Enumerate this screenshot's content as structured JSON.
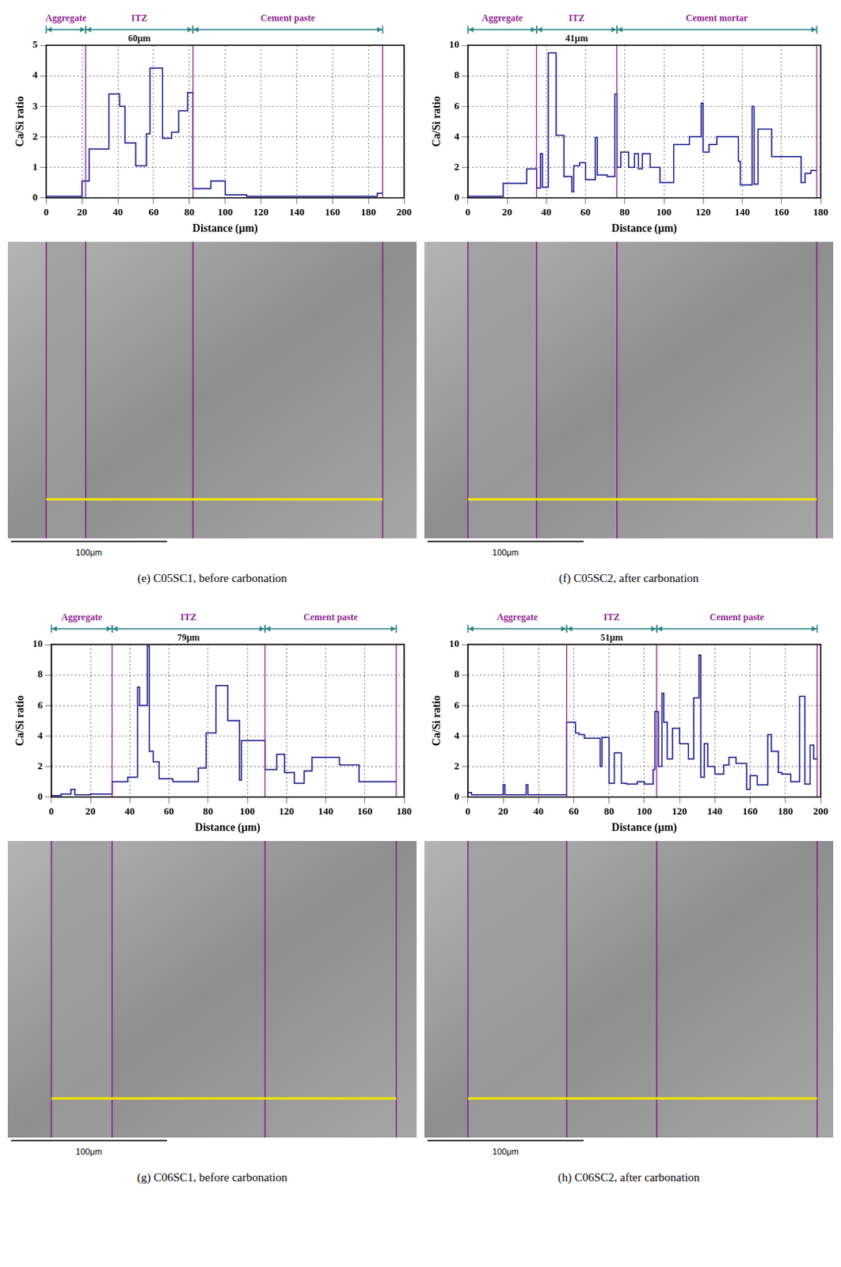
{
  "chart_data": [
    {
      "type": "line",
      "caption": "(e) C05SC1, before carbonation",
      "xlabel": "Distance (μm)",
      "ylabel": "Ca/Si ratio",
      "x": [
        0,
        20,
        24,
        35,
        41,
        44,
        50,
        56,
        58,
        65,
        70,
        74,
        79,
        82,
        92,
        100,
        112,
        185,
        188
      ],
      "values": [
        0.05,
        0.55,
        1.6,
        3.4,
        3.0,
        1.8,
        1.05,
        2.1,
        4.25,
        1.95,
        2.15,
        2.85,
        3.45,
        0.3,
        0.55,
        0.1,
        0.05,
        0.15,
        0.15
      ],
      "color": "#15158f",
      "line_style": "steps",
      "marker": "none",
      "grid": true,
      "xlim": [
        0,
        200
      ],
      "xticks": [
        0,
        20,
        40,
        60,
        80,
        100,
        120,
        140,
        160,
        180,
        200
      ],
      "ylim": [
        0,
        5
      ],
      "yticks": [
        0,
        1,
        2,
        3,
        4,
        5
      ],
      "regions": [
        {
          "name": "Aggregate",
          "from": 0,
          "to": 22
        },
        {
          "name": "ITZ",
          "from": 22,
          "to": 82,
          "width_label": "60μm"
        },
        {
          "name": "Cement paste",
          "from": 82,
          "to": 188
        }
      ],
      "scale_bar": "100μm"
    },
    {
      "type": "line",
      "caption": "(f) C05SC2, after carbonation",
      "xlabel": "Distance (μm)",
      "ylabel": "Ca/Si ratio",
      "x": [
        0,
        18,
        30,
        35,
        37,
        38,
        41,
        45,
        49,
        53,
        54,
        57,
        60,
        65,
        66,
        71,
        75,
        76,
        78,
        82,
        85,
        87,
        89,
        93,
        98,
        105,
        113,
        119,
        120,
        123,
        127,
        138,
        139,
        145,
        146,
        148,
        155,
        170,
        172,
        175,
        178
      ],
      "values": [
        0.1,
        0.95,
        1.9,
        0.65,
        2.9,
        0.7,
        9.5,
        4.1,
        1.4,
        0.4,
        2.1,
        2.3,
        1.2,
        3.95,
        1.5,
        1.4,
        6.8,
        2.0,
        3.0,
        2.0,
        2.9,
        1.9,
        2.9,
        2.0,
        1.0,
        3.5,
        4.0,
        6.2,
        3.0,
        3.5,
        4.0,
        2.4,
        0.85,
        6.0,
        0.9,
        4.5,
        2.7,
        1.0,
        1.6,
        1.8,
        1.8
      ],
      "color": "#15158f",
      "line_style": "steps",
      "marker": "none",
      "grid": true,
      "xlim": [
        0,
        180
      ],
      "xticks": [
        0,
        20,
        40,
        60,
        80,
        100,
        120,
        140,
        160,
        180
      ],
      "ylim": [
        0,
        10
      ],
      "yticks": [
        0,
        2,
        4,
        6,
        8,
        10
      ],
      "regions": [
        {
          "name": "Aggregate",
          "from": 0,
          "to": 35
        },
        {
          "name": "ITZ",
          "from": 35,
          "to": 76,
          "width_label": "41μm"
        },
        {
          "name": "Cement mortar",
          "from": 76,
          "to": 178
        }
      ],
      "scale_bar": "100μm"
    },
    {
      "type": "line",
      "caption": "(g) C06SC1, before carbonation",
      "xlabel": "Distance (μm)",
      "ylabel": "Ca/Si ratio",
      "x": [
        0,
        5,
        10,
        12,
        20,
        31,
        39,
        44,
        45,
        49,
        50,
        52,
        55,
        62,
        75,
        79,
        84,
        90,
        96,
        97,
        109,
        115,
        119,
        124,
        129,
        133,
        147,
        157,
        176
      ],
      "values": [
        0.1,
        0.2,
        0.5,
        0.15,
        0.2,
        1.0,
        1.3,
        7.2,
        6.0,
        9.9,
        3.0,
        2.3,
        1.2,
        1.0,
        1.9,
        4.2,
        7.3,
        5.0,
        1.1,
        3.7,
        1.8,
        2.8,
        1.6,
        0.9,
        1.7,
        2.6,
        2.1,
        1.0,
        1.0
      ],
      "color": "#15158f",
      "line_style": "steps",
      "marker": "none",
      "grid": true,
      "xlim": [
        0,
        180
      ],
      "xticks": [
        0,
        20,
        40,
        60,
        80,
        100,
        120,
        140,
        160,
        180
      ],
      "ylim": [
        0,
        10
      ],
      "yticks": [
        0,
        2,
        4,
        6,
        8,
        10
      ],
      "regions": [
        {
          "name": "Aggregate",
          "from": 0,
          "to": 31
        },
        {
          "name": "ITZ",
          "from": 31,
          "to": 109,
          "width_label": "79μm"
        },
        {
          "name": "Cement paste",
          "from": 109,
          "to": 176
        }
      ],
      "scale_bar": "100μm"
    },
    {
      "type": "line",
      "caption": "(h) C06SC2, after carbonation",
      "xlabel": "Distance (μm)",
      "ylabel": "Ca/Si ratio",
      "x": [
        0,
        2,
        20,
        21,
        33,
        34,
        56,
        61,
        63,
        66,
        75,
        76,
        80,
        83,
        87,
        90,
        96,
        100,
        105,
        106,
        108,
        110,
        111,
        113,
        116,
        120,
        125,
        128,
        131,
        132,
        134,
        136,
        140,
        145,
        148,
        152,
        158,
        160,
        164,
        170,
        172,
        176,
        178,
        183,
        188,
        191,
        194,
        196,
        198
      ],
      "values": [
        0.3,
        0.15,
        0.8,
        0.15,
        0.8,
        0.15,
        4.9,
        4.2,
        4.1,
        3.85,
        2.0,
        3.9,
        0.9,
        2.9,
        0.9,
        0.85,
        1.0,
        0.85,
        1.8,
        5.6,
        2.0,
        6.8,
        4.9,
        2.5,
        4.5,
        3.5,
        2.5,
        6.5,
        9.3,
        1.3,
        3.5,
        2.0,
        1.5,
        2.1,
        2.6,
        2.2,
        0.5,
        1.4,
        0.8,
        4.1,
        3.0,
        1.6,
        1.5,
        1.0,
        6.6,
        0.85,
        3.4,
        2.5,
        2.5
      ],
      "color": "#15158f",
      "line_style": "steps",
      "marker": "none",
      "grid": true,
      "xlim": [
        0,
        200
      ],
      "xticks": [
        0,
        20,
        40,
        60,
        80,
        100,
        120,
        140,
        160,
        180,
        200
      ],
      "ylim": [
        0,
        10
      ],
      "yticks": [
        0,
        2,
        4,
        6,
        8,
        10
      ],
      "regions": [
        {
          "name": "Aggregate",
          "from": 0,
          "to": 56
        },
        {
          "name": "ITZ",
          "from": 56,
          "to": 107,
          "width_label": "51μm"
        },
        {
          "name": "Cement paste",
          "from": 107,
          "to": 198
        }
      ],
      "scale_bar": "100μm"
    }
  ]
}
